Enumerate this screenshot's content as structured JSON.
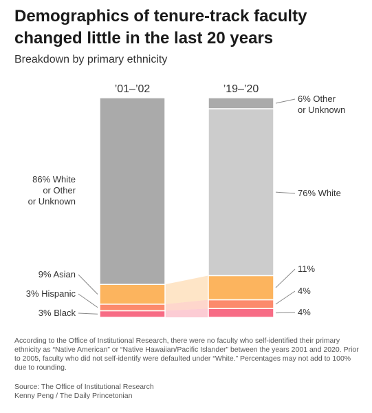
{
  "header": {
    "title_line1": "Demographics of tenure-track faculty",
    "title_line2": "changed little in the last 20 years",
    "subtitle": "Breakdown by primary ethnicity"
  },
  "chart_data": {
    "type": "bar",
    "stacked": true,
    "normalized_to": 100,
    "categories": [
      "’01–’02",
      "’19–’20"
    ],
    "series": [
      {
        "key": "black",
        "color": "#f76c85",
        "values": [
          3,
          4
        ],
        "labels": [
          "3% Black",
          "4%"
        ]
      },
      {
        "key": "hispanic",
        "color": "#fc8a6c",
        "values": [
          3,
          4
        ],
        "labels": [
          "3% Hispanic",
          "4%"
        ]
      },
      {
        "key": "asian",
        "color": "#fcb45e",
        "values": [
          9,
          11
        ],
        "labels": [
          "9% Asian",
          "11%"
        ]
      },
      {
        "key": "white",
        "color": "#aaaaaa",
        "values": [
          86,
          76
        ],
        "labels": [
          "86% White\nor Other\nor Unknown",
          "76% White"
        ]
      },
      {
        "key": "other",
        "color": "#aaaaaa",
        "values": [
          0,
          6
        ],
        "labels": [
          "",
          "6% Other\nor Unknown"
        ]
      }
    ],
    "colors": {
      "first_bar_top": "#aaaaaa",
      "second_bar_white": "#cccccc",
      "second_bar_other": "#aaaaaa",
      "connector_opacity": 0.35
    }
  },
  "footnote": "According to the Office of Institutional Research, there were no faculty who self-identified their primary ethnicity as “Native American” or “Native Hawaiian/Pacific Islander” between the years 2001 and 2020. Prior to 2005, faculty who did not self-identify were defaulted under “White.” Percentages may not add to 100% due to rounding.",
  "source": {
    "line1": "Source: The Office of Institutional Research",
    "line2": "Kenny Peng / The Daily Princetonian"
  }
}
